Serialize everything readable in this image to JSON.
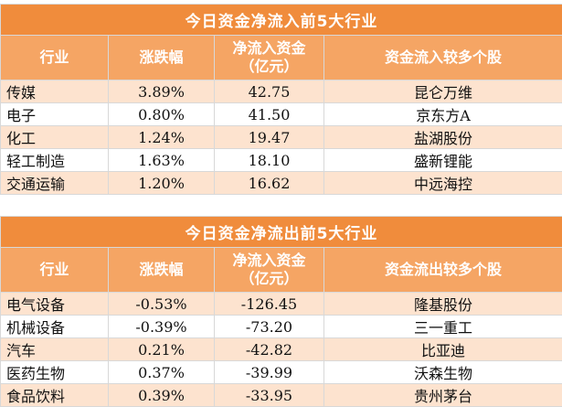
{
  "inflow": {
    "title": "今日资金净流入前5大行业",
    "headers": [
      "行业",
      "涨跌幅",
      "净流入资金\n（亿元）",
      "资金流入较多个股"
    ],
    "rows": [
      {
        "industry": "传媒",
        "change": "3.89%",
        "flow": "42.75",
        "stock": "昆仑万维"
      },
      {
        "industry": "电子",
        "change": "0.80%",
        "flow": "41.50",
        "stock": "京东方A"
      },
      {
        "industry": "化工",
        "change": "1.24%",
        "flow": "19.47",
        "stock": "盐湖股份"
      },
      {
        "industry": "轻工制造",
        "change": "1.63%",
        "flow": "18.10",
        "stock": "盛新锂能"
      },
      {
        "industry": "交通运输",
        "change": "1.20%",
        "flow": "16.62",
        "stock": "中远海控"
      }
    ]
  },
  "outflow": {
    "title": "今日资金净流出前5大行业",
    "headers": [
      "行业",
      "涨跌幅",
      "净流入资金\n（亿元）",
      "资金流出较多个股"
    ],
    "rows": [
      {
        "industry": "电气设备",
        "change": "-0.53%",
        "flow": "-126.45",
        "stock": "隆基股份"
      },
      {
        "industry": "机械设备",
        "change": "-0.39%",
        "flow": "-73.20",
        "stock": "三一重工"
      },
      {
        "industry": "汽车",
        "change": "0.21%",
        "flow": "-42.82",
        "stock": "比亚迪"
      },
      {
        "industry": "医药生物",
        "change": "0.37%",
        "flow": "-39.99",
        "stock": "沃森生物"
      },
      {
        "industry": "食品饮料",
        "change": "0.39%",
        "flow": "-33.95",
        "stock": "贵州茅台"
      }
    ]
  }
}
